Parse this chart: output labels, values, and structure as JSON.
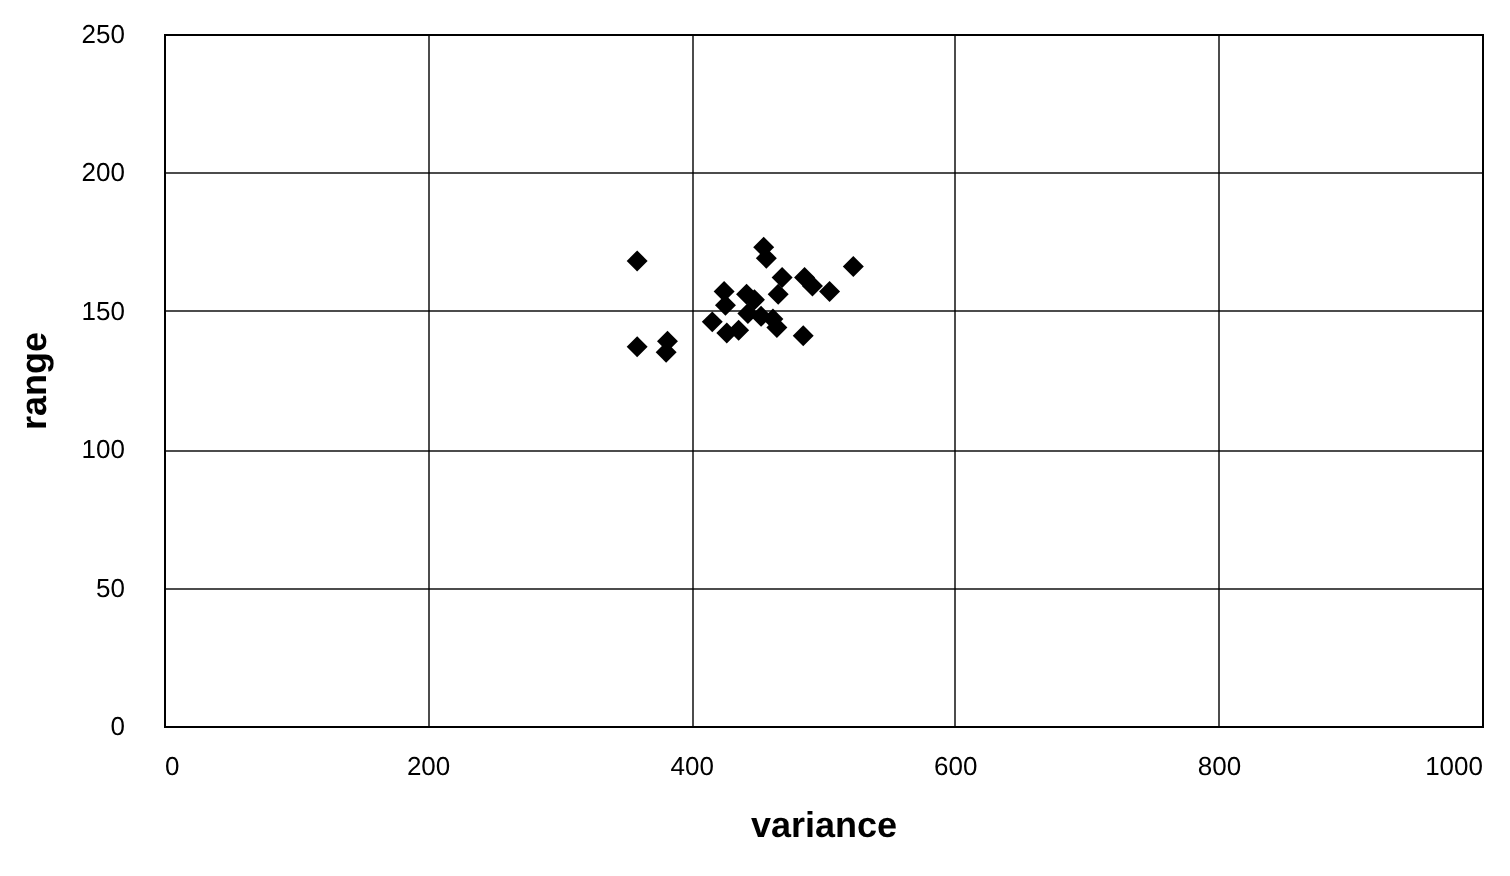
{
  "chart_data": {
    "type": "scatter",
    "xlabel": "variance",
    "ylabel": "range",
    "x": [
      359,
      359,
      382,
      381,
      425,
      426,
      416,
      427,
      436,
      442,
      448,
      443,
      453,
      462,
      465,
      455,
      457,
      469,
      466,
      486,
      492,
      505,
      485,
      523
    ],
    "series": [
      {
        "color": "#000000",
        "values": [
          168,
          137,
          139,
          135,
          157,
          152,
          146,
          142,
          143,
          156,
          154,
          149,
          148,
          147,
          144,
          173,
          169,
          162,
          156,
          162,
          159,
          157,
          141,
          166
        ]
      }
    ],
    "xlim": [
      0,
      1000
    ],
    "xticks": [
      0,
      200,
      400,
      600,
      800,
      1000
    ],
    "ylim": [
      0,
      250
    ],
    "yticks": [
      0,
      50,
      100,
      150,
      200,
      250
    ],
    "grid": true,
    "marker": "diamond",
    "legend": false
  }
}
